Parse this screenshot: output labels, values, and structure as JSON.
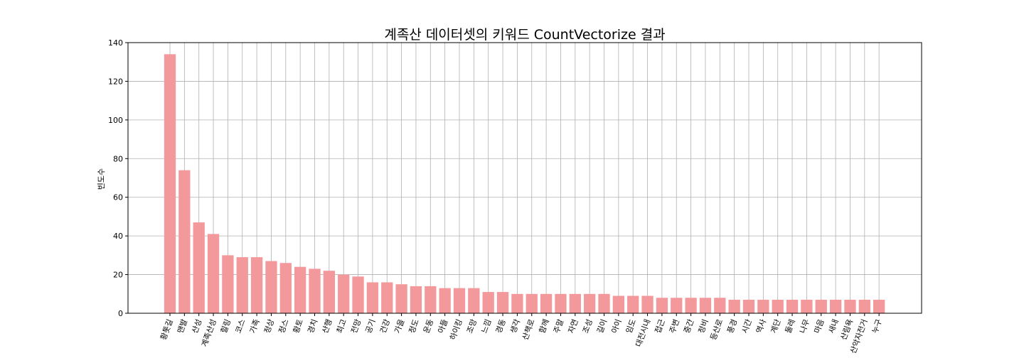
{
  "chart_data": {
    "type": "bar",
    "title": "계족산 데이터셋의 키워드 CountVectorize 결과",
    "xlabel": "",
    "ylabel": "빈도수",
    "ylim": [
      0,
      140
    ],
    "yticks": [
      0,
      20,
      40,
      60,
      80,
      100,
      120,
      140
    ],
    "grid": true,
    "bar_color": "#f4999b",
    "categories": [
      "황톳길",
      "맨발",
      "산성",
      "계족산성",
      "힐링",
      "코스",
      "가족",
      "정상",
      "정스",
      "황토",
      "경치",
      "산행",
      "최고",
      "전망",
      "공기",
      "건강",
      "가을",
      "정도",
      "운동",
      "아들",
      "하이킹",
      "조망",
      "느낌",
      "경동",
      "생각",
      "산책로",
      "함께",
      "주말",
      "자연",
      "조성",
      "길이",
      "아이",
      "임도",
      "대전시내",
      "접근",
      "주변",
      "중간",
      "정비",
      "등산로",
      "풍경",
      "시간",
      "역사",
      "계단",
      "둘레",
      "나무",
      "마음",
      "새내",
      "산림욕",
      "산악자전거",
      "누구"
    ],
    "values": [
      134,
      74,
      47,
      41,
      30,
      29,
      29,
      27,
      26,
      24,
      23,
      22,
      20,
      19,
      16,
      16,
      15,
      14,
      14,
      13,
      13,
      13,
      11,
      11,
      10,
      10,
      10,
      10,
      10,
      10,
      10,
      9,
      9,
      9,
      8,
      8,
      8,
      8,
      8,
      7,
      7,
      7,
      7,
      7,
      7,
      7,
      7,
      7,
      7,
      7
    ]
  }
}
